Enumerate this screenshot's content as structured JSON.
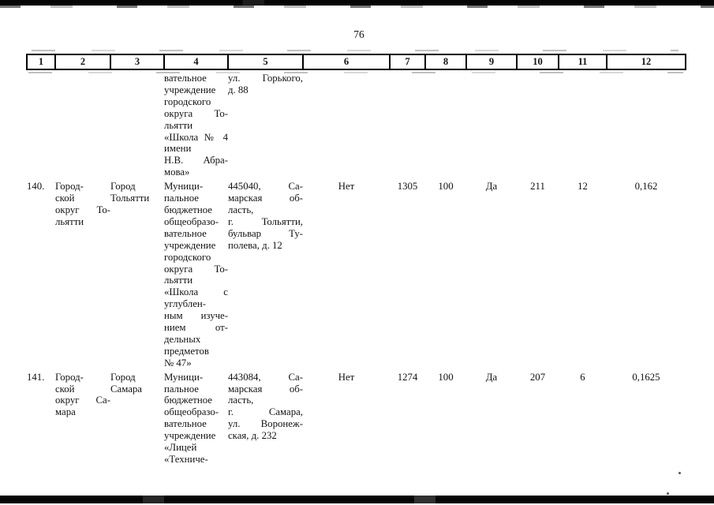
{
  "page": {
    "number": "76"
  },
  "table": {
    "header": [
      "1",
      "2",
      "3",
      "4",
      "5",
      "6",
      "7",
      "8",
      "9",
      "10",
      "11",
      "12"
    ],
    "rows": [
      {
        "num": "",
        "territory": [],
        "city": [],
        "institution": [
          "вательное",
          "учреждение",
          "городского",
          "округа То-",
          "льятти",
          "«Школа № 4",
          "имени",
          "Н.В. Абра-",
          "мова»"
        ],
        "address": [
          "ул. Горького,",
          "д. 88"
        ],
        "col6": "",
        "col7": "",
        "col8": "",
        "col9": "",
        "col10": "",
        "col11": "",
        "col12": ""
      },
      {
        "num": "140.",
        "territory": [
          "Город-",
          "ской",
          "округ То-",
          "льятти"
        ],
        "city": [
          "Город",
          "Тольятти"
        ],
        "institution": [
          "Муници-",
          "пальное",
          "бюджетное",
          "общеобразо-",
          "вательное",
          "учреждение",
          "городского",
          "округа То-",
          "льятти",
          "«Школа с",
          "углублен-",
          "ным изуче-",
          "нием от-",
          "дельных",
          "предметов",
          "№ 47»"
        ],
        "address": [
          "445040, Са-",
          "марская об-",
          "ласть,",
          "г. Тольятти,",
          "бульвар Ту-",
          "полева, д. 12"
        ],
        "col6": "Нет",
        "col7": "1305",
        "col8": "100",
        "col9": "Да",
        "col10": "211",
        "col11": "12",
        "col12": "0,162"
      },
      {
        "num": "141.",
        "territory": [
          "Город-",
          "ской",
          "округ Са-",
          "мара"
        ],
        "city": [
          "Город",
          "Самара"
        ],
        "institution": [
          "Муници-",
          "пальное",
          "бюджетное",
          "общеобразо-",
          "вательное",
          "учреждение",
          "«Лицей",
          "«Техниче-"
        ],
        "address": [
          "443084, Са-",
          "марская об-",
          "ласть,",
          "г. Самара,",
          "ул. Воронеж-",
          "ская, д. 232"
        ],
        "col6": "Нет",
        "col7": "1274",
        "col8": "100",
        "col9": "Да",
        "col10": "207",
        "col11": "6",
        "col12": "0,1625"
      }
    ]
  }
}
